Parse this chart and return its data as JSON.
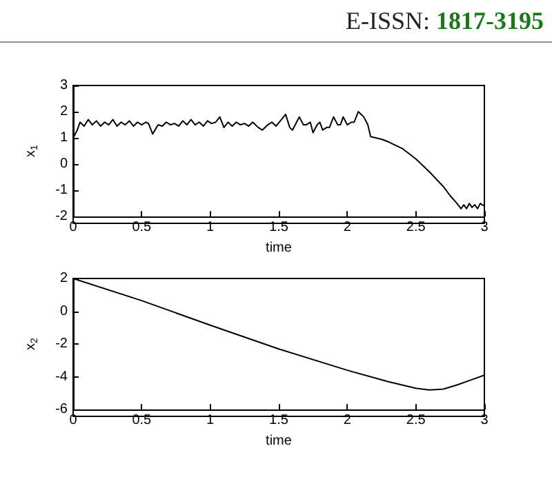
{
  "chart_data": [
    {
      "type": "line",
      "xlabel": "time",
      "ylabel": "x$_{1}$",
      "annotations": [
        "E-ISSN: 1817-3195"
      ],
      "x": [
        0,
        0.03,
        0.05,
        0.08,
        0.11,
        0.14,
        0.17,
        0.2,
        0.23,
        0.26,
        0.29,
        0.32,
        0.35,
        0.38,
        0.41,
        0.44,
        0.47,
        0.5,
        0.53,
        0.55,
        0.58,
        0.62,
        0.65,
        0.68,
        0.71,
        0.74,
        0.77,
        0.8,
        0.83,
        0.86,
        0.89,
        0.92,
        0.95,
        0.98,
        1.01,
        1.04,
        1.07,
        1.1,
        1.13,
        1.16,
        1.19,
        1.22,
        1.25,
        1.28,
        1.31,
        1.35,
        1.38,
        1.42,
        1.45,
        1.48,
        1.52,
        1.55,
        1.58,
        1.6,
        1.63,
        1.65,
        1.68,
        1.7,
        1.73,
        1.75,
        1.78,
        1.8,
        1.82,
        1.85,
        1.87,
        1.9,
        1.93,
        1.95,
        1.97,
        2.0,
        2.03,
        2.05,
        2.08,
        2.1,
        2.12,
        2.15,
        2.17,
        2.25,
        2.3,
        2.4,
        2.5,
        2.6,
        2.7,
        2.75,
        2.8,
        2.83,
        2.85,
        2.87,
        2.89,
        2.91,
        2.93,
        2.95,
        2.97,
        3
      ],
      "series": [
        {
          "color": "#000000",
          "values": [
            1.0,
            1.3,
            1.6,
            1.45,
            1.7,
            1.5,
            1.65,
            1.45,
            1.6,
            1.5,
            1.7,
            1.45,
            1.6,
            1.5,
            1.65,
            1.45,
            1.6,
            1.5,
            1.6,
            1.55,
            1.15,
            1.5,
            1.45,
            1.6,
            1.5,
            1.55,
            1.45,
            1.65,
            1.5,
            1.7,
            1.5,
            1.6,
            1.45,
            1.65,
            1.55,
            1.6,
            1.8,
            1.4,
            1.6,
            1.45,
            1.6,
            1.5,
            1.55,
            1.45,
            1.6,
            1.4,
            1.3,
            1.5,
            1.6,
            1.45,
            1.7,
            1.9,
            1.4,
            1.3,
            1.6,
            1.8,
            1.5,
            1.5,
            1.6,
            1.2,
            1.5,
            1.6,
            1.3,
            1.4,
            1.4,
            1.8,
            1.5,
            1.5,
            1.8,
            1.5,
            1.6,
            1.6,
            2.0,
            1.9,
            1.8,
            1.5,
            1.05,
            0.95,
            0.85,
            0.6,
            0.2,
            -0.3,
            -0.85,
            -1.2,
            -1.5,
            -1.7,
            -1.55,
            -1.7,
            -1.5,
            -1.65,
            -1.55,
            -1.7,
            -1.5,
            -1.6
          ]
        }
      ],
      "xlim": [
        0,
        3
      ],
      "xticks": [
        0,
        0.5,
        1,
        1.5,
        2,
        2.5,
        3
      ],
      "ylim": [
        -2,
        3
      ],
      "yticks": [
        -2,
        -1,
        0,
        1,
        2,
        3
      ],
      "grid": false,
      "marker": "none"
    },
    {
      "type": "line",
      "xlabel": "time",
      "ylabel": "x$_{2}$",
      "x": [
        0,
        0.5,
        1,
        1.5,
        2,
        2.3,
        2.5,
        2.6,
        2.7,
        2.8,
        2.9,
        3
      ],
      "series": [
        {
          "color": "#000000",
          "values": [
            2,
            0.65,
            -0.85,
            -2.3,
            -3.6,
            -4.3,
            -4.7,
            -4.8,
            -4.75,
            -4.5,
            -4.2,
            -3.9
          ]
        }
      ],
      "xlim": [
        0,
        3
      ],
      "xticks": [
        0,
        0.5,
        1,
        1.5,
        2,
        2.5,
        3
      ],
      "ylim": [
        -6,
        2
      ],
      "yticks": [
        -6,
        -4,
        -2,
        0,
        2
      ],
      "grid": false,
      "marker": "none"
    }
  ]
}
